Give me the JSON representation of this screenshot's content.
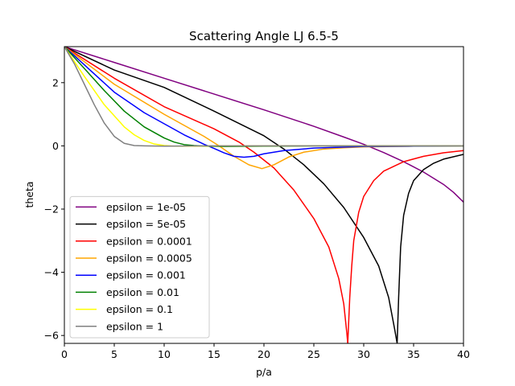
{
  "chart_data": {
    "type": "line",
    "title": "Scattering Angle LJ 6.5-5",
    "xlabel": "p/a",
    "ylabel": "theta",
    "xlim": [
      0,
      40
    ],
    "ylim": [
      -6.25,
      3.14
    ],
    "xticks": [
      0,
      5,
      10,
      15,
      20,
      25,
      30,
      35,
      40
    ],
    "yticks": [
      2,
      0,
      -2,
      -4,
      -6
    ],
    "ytick_labels": [
      "2",
      "0",
      "−2",
      "−4",
      "−6"
    ],
    "grid": false,
    "legend_position": "lower-left",
    "series": [
      {
        "name": "epsilon = 1e-05",
        "color": "#800080",
        "points": [
          [
            0,
            3.14
          ],
          [
            5,
            2.64
          ],
          [
            10,
            2.14
          ],
          [
            15,
            1.64
          ],
          [
            20,
            1.14
          ],
          [
            25,
            0.62
          ],
          [
            28,
            0.28
          ],
          [
            30,
            0.05
          ],
          [
            32,
            -0.21
          ],
          [
            34,
            -0.5
          ],
          [
            36,
            -0.83
          ],
          [
            38,
            -1.22
          ],
          [
            39,
            -1.47
          ],
          [
            40,
            -1.78
          ]
        ]
      },
      {
        "name": "epsilon = 5e-05",
        "color": "#000000",
        "points": [
          [
            0,
            3.14
          ],
          [
            5,
            2.4
          ],
          [
            10,
            1.85
          ],
          [
            15,
            1.1
          ],
          [
            20,
            0.32
          ],
          [
            22,
            -0.1
          ],
          [
            24,
            -0.6
          ],
          [
            26,
            -1.2
          ],
          [
            28,
            -1.95
          ],
          [
            30,
            -2.9
          ],
          [
            31.5,
            -3.8
          ],
          [
            32.5,
            -4.8
          ],
          [
            33.1,
            -5.8
          ],
          [
            33.35,
            -6.25
          ],
          [
            33.5,
            -4.8
          ],
          [
            33.7,
            -3.2
          ],
          [
            34,
            -2.2
          ],
          [
            34.5,
            -1.5
          ],
          [
            35,
            -1.1
          ],
          [
            36,
            -0.75
          ],
          [
            37,
            -0.55
          ],
          [
            38,
            -0.42
          ],
          [
            40,
            -0.27
          ]
        ]
      },
      {
        "name": "epsilon = 0.0001",
        "color": "#ff0000",
        "points": [
          [
            0,
            3.14
          ],
          [
            5,
            2.14
          ],
          [
            10,
            1.24
          ],
          [
            15,
            0.54
          ],
          [
            17.5,
            0.12
          ],
          [
            19,
            -0.2
          ],
          [
            21,
            -0.7
          ],
          [
            23,
            -1.4
          ],
          [
            25,
            -2.3
          ],
          [
            26.5,
            -3.2
          ],
          [
            27.5,
            -4.2
          ],
          [
            28,
            -5.0
          ],
          [
            28.3,
            -5.9
          ],
          [
            28.4,
            -6.25
          ],
          [
            28.6,
            -4.8
          ],
          [
            28.8,
            -3.8
          ],
          [
            29,
            -3.0
          ],
          [
            29.5,
            -2.1
          ],
          [
            30,
            -1.6
          ],
          [
            31,
            -1.1
          ],
          [
            32,
            -0.8
          ],
          [
            34,
            -0.5
          ],
          [
            36,
            -0.33
          ],
          [
            38,
            -0.22
          ],
          [
            40,
            -0.15
          ]
        ]
      },
      {
        "name": "epsilon = 0.0005",
        "color": "#ffa500",
        "points": [
          [
            0,
            3.14
          ],
          [
            5,
            1.95
          ],
          [
            10,
            1.0
          ],
          [
            12,
            0.65
          ],
          [
            14,
            0.3
          ],
          [
            15.5,
            0.0
          ],
          [
            17,
            -0.33
          ],
          [
            18.5,
            -0.6
          ],
          [
            19.8,
            -0.72
          ],
          [
            21,
            -0.6
          ],
          [
            22.5,
            -0.35
          ],
          [
            24,
            -0.2
          ],
          [
            26,
            -0.1
          ],
          [
            28,
            -0.06
          ],
          [
            30,
            -0.03
          ],
          [
            35,
            -0.01
          ],
          [
            40,
            0.0
          ]
        ]
      },
      {
        "name": "epsilon = 0.001",
        "color": "#0000ff",
        "points": [
          [
            0,
            3.14
          ],
          [
            5,
            1.7
          ],
          [
            8,
            1.05
          ],
          [
            10,
            0.7
          ],
          [
            12,
            0.35
          ],
          [
            14,
            0.05
          ],
          [
            15,
            -0.08
          ],
          [
            16,
            -0.22
          ],
          [
            17,
            -0.33
          ],
          [
            18,
            -0.36
          ],
          [
            19,
            -0.33
          ],
          [
            20,
            -0.25
          ],
          [
            22,
            -0.15
          ],
          [
            25,
            -0.07
          ],
          [
            30,
            -0.02
          ],
          [
            35,
            -0.01
          ],
          [
            40,
            0.0
          ]
        ]
      },
      {
        "name": "epsilon = 0.01",
        "color": "#008000",
        "points": [
          [
            0,
            3.14
          ],
          [
            2,
            2.45
          ],
          [
            4,
            1.75
          ],
          [
            6,
            1.1
          ],
          [
            8,
            0.6
          ],
          [
            10,
            0.25
          ],
          [
            11,
            0.12
          ],
          [
            12,
            0.04
          ],
          [
            13,
            0.01
          ],
          [
            14,
            -0.01
          ],
          [
            16,
            -0.02
          ],
          [
            20,
            -0.01
          ],
          [
            25,
            0.0
          ],
          [
            30,
            0.0
          ],
          [
            40,
            0.0
          ]
        ]
      },
      {
        "name": "epsilon = 0.1",
        "color": "#ffff00",
        "points": [
          [
            0,
            3.14
          ],
          [
            2,
            2.2
          ],
          [
            4,
            1.3
          ],
          [
            6,
            0.6
          ],
          [
            7,
            0.35
          ],
          [
            8,
            0.17
          ],
          [
            9,
            0.06
          ],
          [
            10,
            0.01
          ],
          [
            11,
            -0.01
          ],
          [
            13,
            -0.01
          ],
          [
            16,
            0.0
          ],
          [
            20,
            0.0
          ],
          [
            30,
            0.0
          ],
          [
            40,
            0.0
          ]
        ]
      },
      {
        "name": "epsilon = 1",
        "color": "#808080",
        "points": [
          [
            0,
            3.14
          ],
          [
            1,
            2.6
          ],
          [
            2,
            1.95
          ],
          [
            3,
            1.3
          ],
          [
            4,
            0.72
          ],
          [
            5,
            0.3
          ],
          [
            6,
            0.08
          ],
          [
            7,
            0.01
          ],
          [
            8,
            0.0
          ],
          [
            10,
            -0.01
          ],
          [
            14,
            0.0
          ],
          [
            20,
            0.0
          ],
          [
            30,
            0.0
          ],
          [
            40,
            0.0
          ]
        ]
      }
    ]
  }
}
